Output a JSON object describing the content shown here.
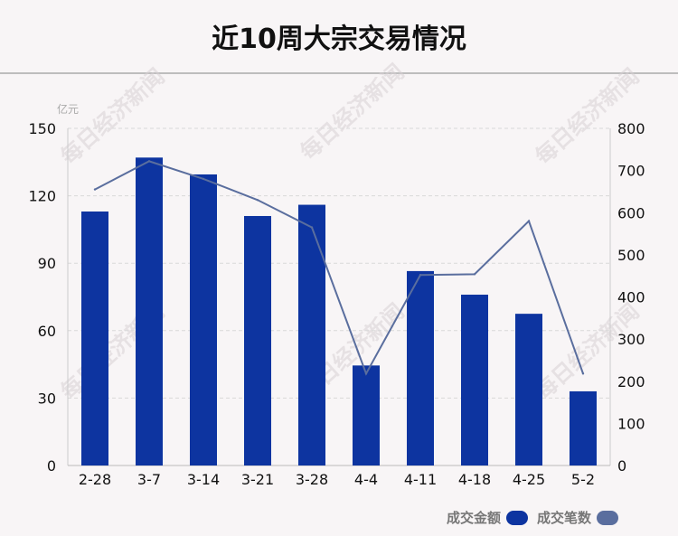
{
  "title": "近10周大宗交易情况",
  "chart_data": {
    "type": "bar",
    "categories": [
      "2-28",
      "3-7",
      "3-14",
      "3-21",
      "3-28",
      "4-4",
      "4-11",
      "4-18",
      "4-25",
      "5-2"
    ],
    "series": [
      {
        "name": "成交金额",
        "type": "bar",
        "axis": "left",
        "values": [
          113,
          137,
          129.5,
          111,
          116,
          44.5,
          86.5,
          76,
          67.5,
          33
        ]
      },
      {
        "name": "成交笔数",
        "type": "line",
        "axis": "right",
        "values": [
          655,
          722,
          680,
          630,
          565,
          218,
          452,
          454,
          580,
          218
        ]
      }
    ],
    "y_left": {
      "unit": "亿元",
      "min": 0,
      "max": 150,
      "ticks": [
        0,
        30,
        60,
        90,
        120,
        150
      ]
    },
    "y_right": {
      "min": 0,
      "max": 800,
      "ticks": [
        0,
        100,
        200,
        300,
        400,
        500,
        600,
        700,
        800
      ]
    },
    "grid": true,
    "legend_position": "bottom-right"
  },
  "watermark": "每日经济新闻",
  "colors": {
    "bar": "#0d34a0",
    "line": "#5a6e9e",
    "grid": "#d9d9d9",
    "axis_text": "#111111"
  }
}
